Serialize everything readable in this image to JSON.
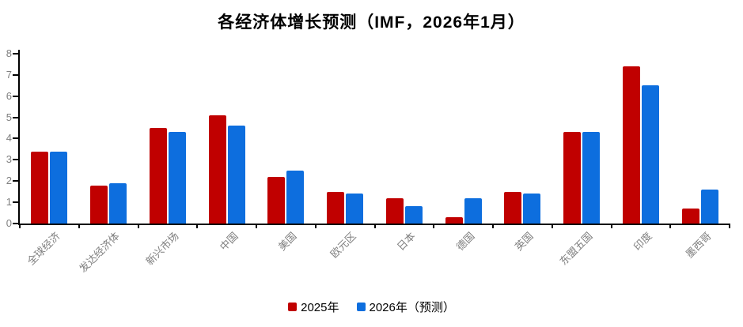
{
  "title": "各经济体增长预测（IMF，2026年1月）",
  "chart_data": {
    "type": "bar",
    "title": "各经济体增长预测（IMF，2026年1月）",
    "categories": [
      "全球经济",
      "发达经济体",
      "新兴市场",
      "中国",
      "美国",
      "欧元区",
      "日本",
      "德国",
      "英国",
      "东盟五国",
      "印度",
      "墨西哥"
    ],
    "series": [
      {
        "name": "2025年",
        "color": "#C00000",
        "values": [
          3.4,
          1.8,
          4.5,
          5.1,
          2.2,
          1.5,
          1.2,
          0.3,
          1.5,
          4.3,
          7.4,
          0.7
        ]
      },
      {
        "name": "2026年（预测）",
        "color": "#0D6EDE",
        "values": [
          3.4,
          1.9,
          4.3,
          4.6,
          2.5,
          1.4,
          0.8,
          1.2,
          1.4,
          4.3,
          6.5,
          1.6
        ]
      }
    ],
    "xlabel": "",
    "ylabel": "",
    "ylim": [
      0,
      8
    ],
    "yticks": [
      0,
      1,
      2,
      3,
      4,
      5,
      6,
      7,
      8
    ],
    "grid": false,
    "legend_position": "bottom",
    "colors": {
      "series_2025": "#C00000",
      "series_2026": "#0D6EDE",
      "axis": "#000000",
      "tick_labels": "#7f7f7f",
      "title": "#000000",
      "background": "#ffffff"
    }
  }
}
